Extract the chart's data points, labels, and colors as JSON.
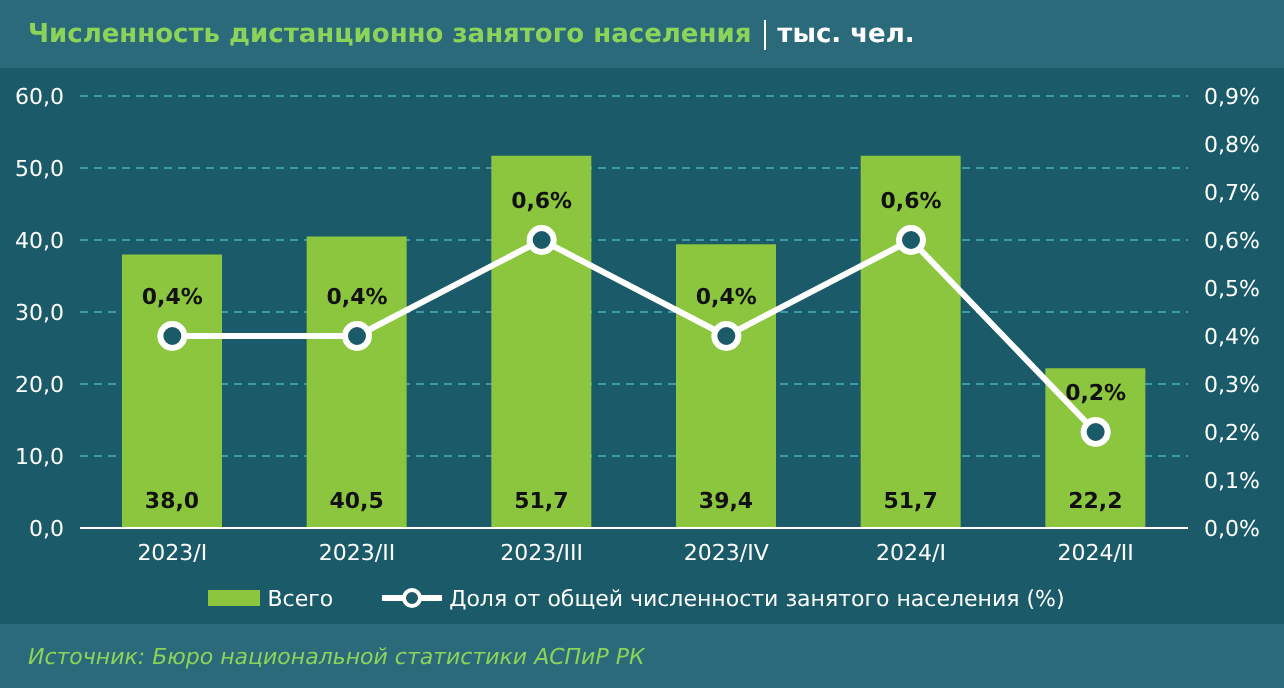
{
  "chart_data": {
    "type": "bar",
    "title": "Численность дистанционно занятого населения",
    "subtitle": "тыс. чел.",
    "categories": [
      "2023/I",
      "2023/II",
      "2023/III",
      "2023/IV",
      "2024/I",
      "2024/II"
    ],
    "series": [
      {
        "name": "Всего",
        "color": "#8cc63f",
        "values": [
          38.0,
          40.5,
          51.7,
          39.4,
          51.7,
          22.2
        ],
        "value_labels": [
          "38,0",
          "40,5",
          "51,7",
          "39,4",
          "51,7",
          "22,2"
        ]
      },
      {
        "name": "Доля от общей численности занятого населения (%)",
        "type": "line",
        "axis": "y2",
        "color": "#ffffff",
        "values": [
          0.4,
          0.4,
          0.6,
          0.4,
          0.6,
          0.2
        ],
        "value_labels": [
          "0,4%",
          "0,4%",
          "0,6%",
          "0,4%",
          "0,6%",
          "0,2%"
        ]
      }
    ],
    "ylim": [
      0,
      60
    ],
    "yticks": [
      {
        "value": 0,
        "label": "0,0"
      },
      {
        "value": 10,
        "label": "10,0"
      },
      {
        "value": 20,
        "label": "20,0"
      },
      {
        "value": 30,
        "label": "30,0"
      },
      {
        "value": 40,
        "label": "40,0"
      },
      {
        "value": 50,
        "label": "50,0"
      },
      {
        "value": 60,
        "label": "60,0"
      }
    ],
    "y2lim": [
      0,
      0.9
    ],
    "y2ticks": [
      {
        "value": 0,
        "label": "0,0%"
      },
      {
        "value": 0.1,
        "label": "0,1%"
      },
      {
        "value": 0.2,
        "label": "0,2%"
      },
      {
        "value": 0.3,
        "label": "0,3%"
      },
      {
        "value": 0.4,
        "label": "0,4%"
      },
      {
        "value": 0.5,
        "label": "0,5%"
      },
      {
        "value": 0.6,
        "label": "0,6%"
      },
      {
        "value": 0.7,
        "label": "0,7%"
      },
      {
        "value": 0.8,
        "label": "0,8%"
      },
      {
        "value": 0.9,
        "label": "0,9%"
      }
    ],
    "grid": "y",
    "legend": "bottom",
    "marker": "circle",
    "line_style": "solid",
    "annotations": [
      "Источник: Бюро национальной статистики АСПиР РК"
    ]
  }
}
